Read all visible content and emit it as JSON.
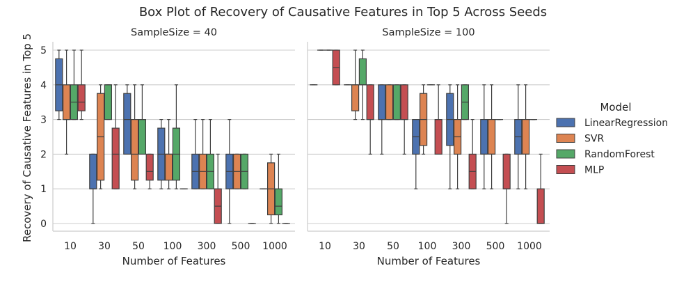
{
  "chart_data": {
    "type": "box",
    "title": "Box Plot of Recovery of Causative Features in Top 5 Across Seeds",
    "ylabel": "Recovery of Causative Features in Top 5",
    "ylim": [
      -0.22,
      5.25
    ],
    "yticks": [
      "0",
      "1",
      "2",
      "3",
      "4",
      "5"
    ],
    "grid": "horizontal",
    "legend": {
      "title": "Model",
      "placement": "right",
      "entries": [
        {
          "name": "LinearRegression",
          "color": "#4C72B0"
        },
        {
          "name": "SVR",
          "color": "#DD8452"
        },
        {
          "name": "RandomForest",
          "color": "#55A868"
        },
        {
          "name": "MLP",
          "color": "#C44E52"
        }
      ]
    },
    "panels": [
      {
        "title": "SampleSize = 40",
        "xlabel": "Number of Features",
        "categories": [
          "10",
          "30",
          "50",
          "100",
          "300",
          "500",
          "1000"
        ],
        "boxes": [
          [
            [
              3,
              3.25,
              4,
              4.75,
              5
            ],
            [
              2,
              3,
              3,
              4,
              5
            ],
            [
              3,
              3,
              3.5,
              4,
              5
            ],
            [
              3,
              3.25,
              3.5,
              4,
              5
            ]
          ],
          [
            [
              0,
              1,
              1,
              2,
              2
            ],
            [
              1,
              1.25,
              2.5,
              3.75,
              4
            ],
            [
              3,
              3,
              4,
              4,
              4
            ],
            [
              1,
              1,
              2,
              2.75,
              4
            ]
          ],
          [
            [
              2,
              2,
              3,
              3.75,
              4
            ],
            [
              1,
              1.25,
              2,
              3,
              4
            ],
            [
              2,
              2,
              3,
              3,
              4
            ],
            [
              1,
              1.25,
              1.5,
              2,
              2
            ]
          ],
          [
            [
              1,
              1.25,
              2,
              2.75,
              3
            ],
            [
              1,
              1.25,
              2,
              2,
              3
            ],
            [
              1,
              1.25,
              2,
              2.75,
              4
            ],
            [
              1,
              1,
              1,
              1,
              1
            ]
          ],
          [
            [
              1,
              1,
              1.5,
              2,
              3
            ],
            [
              1,
              1,
              1.5,
              2,
              3
            ],
            [
              1,
              1,
              1.5,
              2,
              3
            ],
            [
              0,
              0,
              0.5,
              1,
              2
            ]
          ],
          [
            [
              0,
              1,
              1.5,
              2,
              3
            ],
            [
              1,
              1,
              1.5,
              2,
              2
            ],
            [
              1,
              1,
              1.5,
              2,
              2
            ],
            [
              0,
              0,
              0,
              0,
              0
            ]
          ],
          [
            [
              1,
              1,
              1,
              1,
              1
            ],
            [
              0,
              0.25,
              1,
              1.75,
              2
            ],
            [
              0,
              0.25,
              0.5,
              1,
              2
            ],
            [
              0,
              0,
              0,
              0,
              0
            ]
          ]
        ]
      },
      {
        "title": "SampleSize = 100",
        "xlabel": "Number of Features",
        "categories": [
          "10",
          "30",
          "50",
          "100",
          "300",
          "500",
          "1000"
        ],
        "boxes": [
          [
            [
              4,
              4,
              4,
              4,
              4
            ],
            [
              5,
              5,
              5,
              5,
              5
            ],
            [
              5,
              5,
              5,
              5,
              5
            ],
            [
              4,
              4,
              4.5,
              5,
              5
            ]
          ],
          [
            [
              4,
              4,
              4,
              4,
              4
            ],
            [
              3,
              3.25,
              4,
              4,
              5
            ],
            [
              3,
              4,
              4,
              4.75,
              5
            ],
            [
              2,
              3,
              3,
              4,
              4
            ]
          ],
          [
            [
              2,
              3,
              3,
              4,
              4
            ],
            [
              3,
              3,
              3,
              4,
              4
            ],
            [
              3,
              3,
              3,
              4,
              4
            ],
            [
              2,
              3,
              3,
              4,
              4
            ]
          ],
          [
            [
              1,
              2,
              2.5,
              3,
              3
            ],
            [
              2,
              2.25,
              3,
              3.75,
              4
            ],
            [
              4,
              4,
              4,
              4,
              4
            ],
            [
              2,
              2,
              3,
              3,
              4
            ]
          ],
          [
            [
              1,
              2.25,
              3,
              3.75,
              4
            ],
            [
              1,
              2,
              2.5,
              3,
              4
            ],
            [
              3,
              3,
              3.5,
              4,
              4
            ],
            [
              1,
              1,
              1.5,
              2,
              3
            ]
          ],
          [
            [
              1,
              2,
              2,
              3,
              4
            ],
            [
              1,
              2,
              2,
              3,
              4
            ],
            [
              3,
              3,
              3,
              3,
              3
            ],
            [
              0,
              1,
              1,
              2,
              2
            ]
          ],
          [
            [
              1,
              2,
              2.5,
              3,
              4
            ],
            [
              1,
              2,
              2,
              3,
              4
            ],
            [
              3,
              3,
              3,
              3,
              3
            ],
            [
              0,
              0,
              0,
              1,
              2
            ]
          ]
        ]
      }
    ]
  }
}
